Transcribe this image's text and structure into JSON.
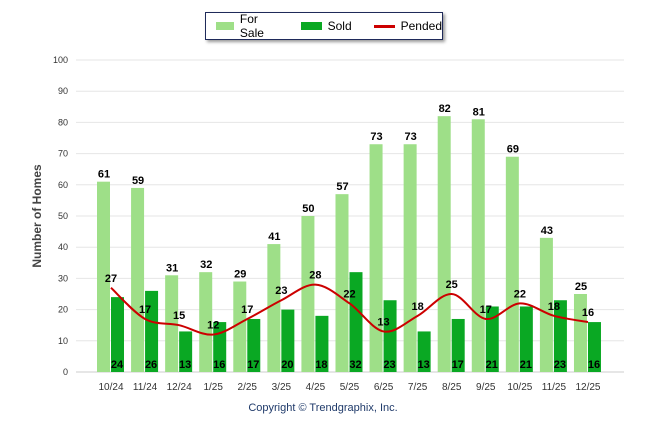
{
  "legend": {
    "for_sale": "For Sale",
    "sold": "Sold",
    "pended": "Pended"
  },
  "copyright": "Copyright © Trendgraphix, Inc.",
  "colors": {
    "for_sale": "#9edf88",
    "sold": "#0aa823",
    "pended": "#cc0000"
  },
  "chart_data": {
    "type": "bar",
    "title": "",
    "xlabel": "",
    "ylabel": "Number of Homes",
    "ylim": [
      0,
      100
    ],
    "yticks": [
      0,
      10,
      20,
      30,
      40,
      50,
      60,
      70,
      80,
      90,
      100
    ],
    "grid": true,
    "legend_position": "top-center",
    "categories": [
      "10/24",
      "11/24",
      "12/24",
      "1/25",
      "2/25",
      "3/25",
      "4/25",
      "5/25",
      "6/25",
      "7/25",
      "8/25",
      "9/25",
      "10/25",
      "11/25",
      "12/25"
    ],
    "series": [
      {
        "name": "For Sale",
        "type": "bar",
        "values": [
          61,
          59,
          31,
          32,
          29,
          41,
          50,
          57,
          73,
          73,
          82,
          81,
          69,
          43,
          25
        ]
      },
      {
        "name": "Sold",
        "type": "bar",
        "values": [
          24,
          26,
          13,
          16,
          17,
          20,
          18,
          32,
          23,
          13,
          17,
          21,
          21,
          23,
          16
        ]
      },
      {
        "name": "Pended",
        "type": "line",
        "values": [
          27,
          17,
          15,
          12,
          17,
          23,
          28,
          22,
          13,
          18,
          25,
          17,
          22,
          18,
          16
        ]
      }
    ]
  }
}
